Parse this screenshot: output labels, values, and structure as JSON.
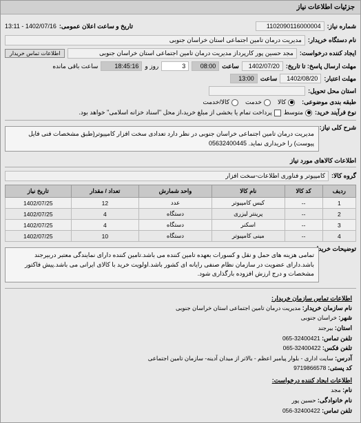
{
  "window": {
    "title": "جزئیات اطلاعات نیاز"
  },
  "header": {
    "req_number_label": "شماره نیاز:",
    "req_number": "1102090116000004",
    "announce_label": "تاریخ و ساعت اعلان عمومی:",
    "announce_value": "1402/07/16 - 13:11",
    "buyer_name_label": "نام دستگاه خریدار:",
    "buyer_name": "مدیریت درمان تامین اجتماعی استان خراسان جنوبی",
    "requester_label": "ایجاد کننده درخواست:",
    "requester": "مجد حسین پور کارپرداز مدیریت درمان تامین اجتماعی استان خراسان جنوبی",
    "contact_btn": "اطلاعات تماس خریدار",
    "deadline_send_label": "مهلت ارسال پاسخ: تا تاریخ:",
    "deadline_send_date": "1402/07/20",
    "time_label": "ساعت",
    "deadline_send_time": "08:00",
    "days_label": "روز و",
    "days_value": "3",
    "remaining_time": "18:45:16",
    "remaining_label": "ساعت باقی مانده",
    "validity_label": "مهلت اعتبار:",
    "validity_date": "1402/08/20",
    "validity_time": "13:00",
    "delivery_loc_label": "استان محل تحویل:",
    "delivery_loc": "",
    "rating_label": "طبقه بندی موضوعی:",
    "r1": "کالا",
    "r2": "خدمت",
    "r3": "کالا/خدمت",
    "offer_label": "نوع فرآیند خرید:",
    "o1": "متوسط",
    "o2": "پرداخت تمام یا بخشی از مبلغ خرید،از محل \"اسناد خزانه اسلامی\" خواهد بود."
  },
  "desc": {
    "label": "شرح کلی نیاز:",
    "text": "مدیریت درمان تامین اجتماعی خراسان جنوبی در نظر دارد تعدادی سخت افزار کامپیوتر(طبق مشخصات فنی فایل پیوست) را خریداری نماید. 05632400445"
  },
  "group": {
    "title": "اطلاعات کالاهای مورد نیاز",
    "label": "گروه کالا:",
    "value": "کامپیوتر و فناوری اطلاعات-سخت افزار"
  },
  "table": {
    "columns": [
      "ردیف",
      "کد کالا",
      "نام کالا",
      "واحد شمارش",
      "تعداد / مقدار",
      "تاریخ نیاز"
    ],
    "rows": [
      [
        "1",
        "--",
        "کیس کامپیوتر",
        "عدد",
        "12",
        "1402/07/25"
      ],
      [
        "2",
        "--",
        "پرینتر لیزری",
        "دستگاه",
        "4",
        "1402/07/25"
      ],
      [
        "3",
        "--",
        "اسکنر",
        "دستگاه",
        "4",
        "1402/07/25"
      ],
      [
        "4",
        "--",
        "مینی کامپیوتر",
        "دستگاه",
        "10",
        "1402/07/25"
      ]
    ]
  },
  "notes": {
    "label": "توضیحات خریدار:",
    "text": "تمامی هزینه های حمل و نقل و کسورات بعهده تامین کننده می باشد.تامین کننده دارای نمایندگی معتبر دربیرجند باشد.دارای عضویت در سازمان نظام صنفی رایانه ای کشور باشد.اولویت خرید با کالای ایرانی می باشد.پیش فاکتور مشخصات و درج ارزش افزوده بارگذاری شود."
  },
  "contact": {
    "title": "اطلاعات تماس سازمان خریدار:",
    "org_label": "نام سازمان خریدار:",
    "org": "مدیریت درمان تامین اجتماعی استان خراسان جنوبی",
    "city_label": "شهر:",
    "city": "خراسان جنوبی",
    "province_label": "استان:",
    "province": "بیرجند",
    "phone_label": "تلفن تماس:",
    "phone": "32400421-065",
    "fax_label": "تلفن فکس:",
    "fax": "32400422-065",
    "address_label": "آدرس:",
    "address": "سایت اداری - بلوار پیامبر اعظم - بالاتر از میدان آدینه- سازمان تامین اجتماعی",
    "postal_label": "کد پستی:",
    "postal": "9719866578",
    "creator_title": "اطلاعات ایجاد کننده درخواست:",
    "name_label": "نام:",
    "name": "مجد",
    "family_label": "نام خانوادگی:",
    "family": "حسین پور",
    "cphone_label": "تلفن تماس:",
    "cphone": "32400422-056"
  }
}
